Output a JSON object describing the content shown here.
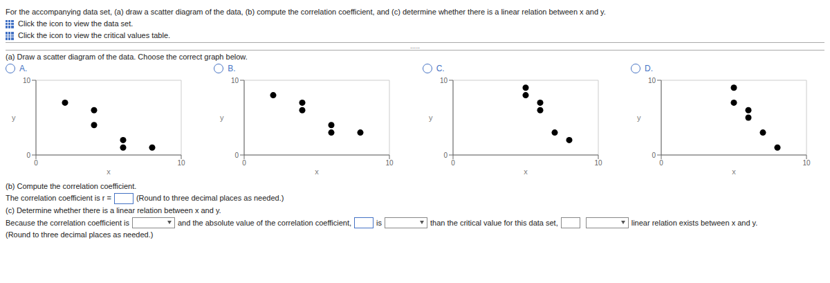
{
  "chart_data": [
    {
      "type": "scatter",
      "title": "A.",
      "x": [
        2,
        4,
        4,
        6,
        6,
        8
      ],
      "values": [
        7,
        6,
        4,
        2,
        1,
        1
      ],
      "color": "#000000",
      "xlabel": "x",
      "ylabel": "y",
      "xlim": [
        0,
        10
      ],
      "ylim": [
        0,
        10
      ],
      "xticks": [
        0,
        10
      ],
      "yticks": [
        0,
        10
      ],
      "grid": true,
      "annotations": [
        "For the accompanying data set, (a) draw a scatter diagram of the data, (b) compute the correlation coefficient, and (c) determine whether there is a linear relation between x and y.",
        "Click the icon to view the data set.",
        "Click the icon to view the critical values table.",
        ".....",
        "(a) Draw a scatter diagram of the data. Choose the correct graph below."
      ]
    },
    {
      "type": "scatter",
      "title": "B.",
      "x": [
        2,
        4,
        4,
        6,
        6,
        8
      ],
      "values": [
        8,
        7,
        6,
        4,
        3,
        3
      ],
      "color": "#000000",
      "xlabel": "x",
      "ylabel": "y",
      "xlim": [
        0,
        10
      ],
      "ylim": [
        0,
        10
      ],
      "xticks": [
        0,
        10
      ],
      "yticks": [
        0,
        10
      ],
      "grid": true
    },
    {
      "type": "scatter",
      "title": "C.",
      "x": [
        5,
        5,
        6,
        6,
        7,
        8
      ],
      "values": [
        9,
        8,
        7,
        6,
        3,
        2
      ],
      "color": "#000000",
      "xlabel": "x",
      "ylabel": "y",
      "xlim": [
        0,
        10
      ],
      "ylim": [
        0,
        10
      ],
      "xticks": [
        0,
        10
      ],
      "yticks": [
        0,
        10
      ],
      "grid": true
    },
    {
      "type": "scatter",
      "title": "D.",
      "x": [
        5,
        5,
        6,
        6,
        7,
        8
      ],
      "values": [
        9,
        7,
        6,
        5,
        3,
        1
      ],
      "color": "#000000",
      "xlabel": "x",
      "ylabel": "y",
      "xlim": [
        0,
        10
      ],
      "ylim": [
        0,
        10
      ],
      "xticks": [
        0,
        10
      ],
      "yticks": [
        0,
        10
      ],
      "grid": true,
      "annotations": [
        "(b) Compute the correlation coefficient.",
        "The correlation coefficient is r =",
        "(Round to three decimal places as needed.)",
        "(c) Determine whether there is a linear relation between x and y.",
        "Because the correlation coefficient is",
        "and the absolute value of the correlation coefficient,",
        "is",
        "than the critical value for this data set,",
        "linear relation exists between x and y.",
        "(Round to three decimal places as needed.)"
      ]
    }
  ]
}
